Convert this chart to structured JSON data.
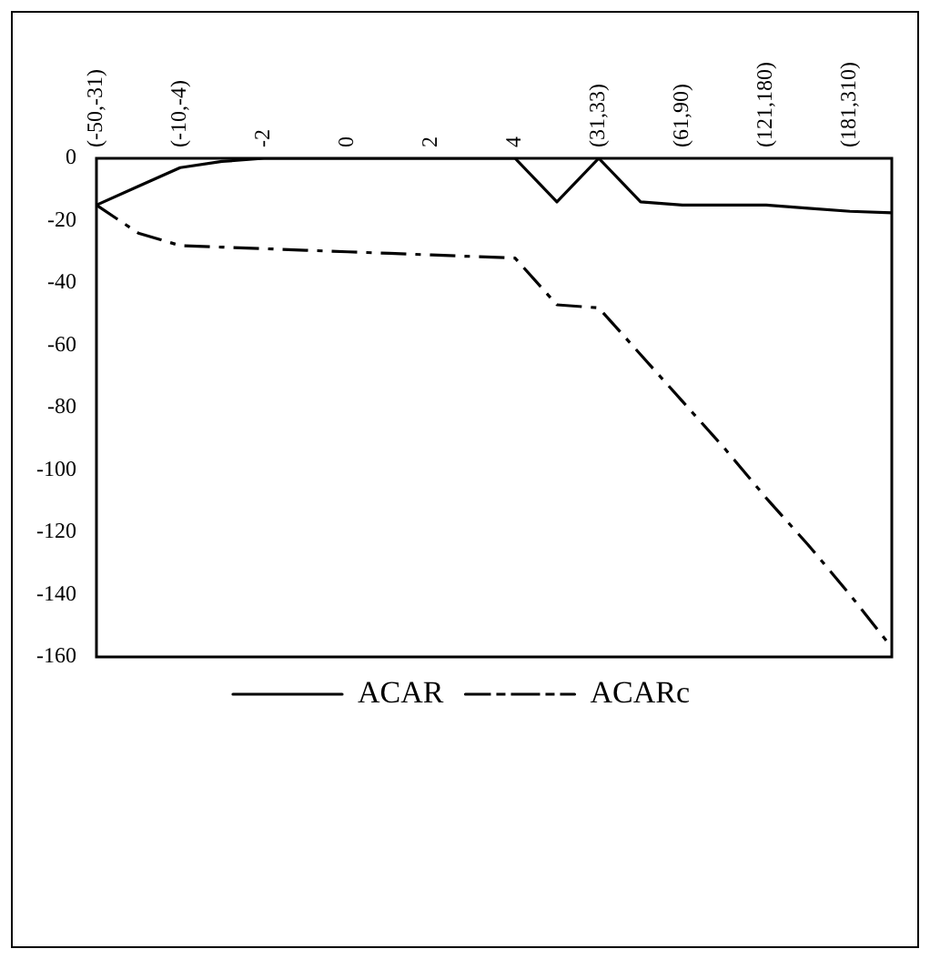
{
  "chart_data": {
    "type": "line",
    "categories": [
      "(-50,-31)",
      null,
      "(-10,-4)",
      null,
      "-2",
      null,
      "0",
      null,
      "2",
      null,
      "4",
      null,
      "(31,33)",
      null,
      "(61,90)",
      null,
      "(121,180)",
      null,
      "(181,310)",
      null
    ],
    "series": [
      {
        "name": "ACAR",
        "color": "#000000",
        "line_style": "solid",
        "values": [
          -15,
          -9,
          -3,
          -1,
          0,
          0,
          0,
          0,
          0,
          0,
          0,
          -14,
          0,
          -14,
          -15,
          -15,
          -15,
          -16,
          -17,
          -17.5
        ]
      },
      {
        "name": "ACARc",
        "color": "#000000",
        "line_style": "dashed",
        "values": [
          -15,
          -24,
          -28,
          -28.5,
          -29,
          -29.5,
          -30,
          -30.5,
          -31,
          -31.5,
          -32,
          -47,
          -48,
          -63,
          -78,
          -93,
          -109,
          -124,
          -140,
          -157
        ]
      }
    ],
    "ylim": [
      -160,
      0
    ],
    "yticks": [
      -160,
      -140,
      -120,
      -100,
      -80,
      -60,
      -40,
      -20,
      0
    ],
    "grid": false,
    "legend": "bottom",
    "marker": "none"
  }
}
